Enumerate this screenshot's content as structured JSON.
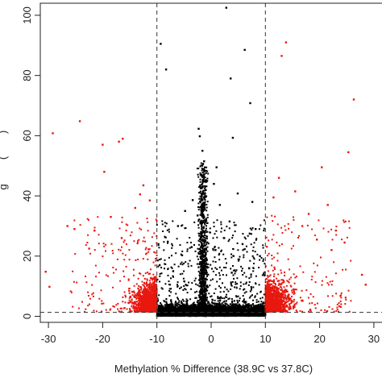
{
  "chart_data": {
    "type": "scatter",
    "title": "",
    "xlabel": "Methylation % Difference (38.9C vs 37.8C)",
    "ylabel_visible_fragments": [
      "g",
      "(",
      ")"
    ],
    "x_ticks": [
      -30,
      -20,
      -10,
      0,
      10,
      20,
      30
    ],
    "y_ticks": [
      0,
      20,
      40,
      60,
      80,
      100
    ],
    "x_tick_labels": [
      "-30",
      "-20",
      "-10",
      "0",
      "10",
      "20",
      "30"
    ],
    "y_tick_labels": [
      "0",
      "20",
      "40",
      "60",
      "80",
      "100"
    ],
    "xlim": [
      -31.5,
      31.5
    ],
    "ylim": [
      -2,
      104
    ],
    "grid": false,
    "legend": "none",
    "reference_lines": {
      "vertical_x": [
        -10,
        10
      ],
      "horizontal_y": [
        1.3
      ],
      "style": "dashed"
    },
    "colors": {
      "significant": "#e8180f",
      "not_significant": "#000000"
    },
    "series": [
      {
        "color": "#000000",
        "points": [
          [
            2.8,
            102.5
          ],
          [
            -9.3,
            90.5
          ],
          [
            -8.3,
            82
          ],
          [
            6.2,
            88.5
          ],
          [
            3.6,
            79
          ],
          [
            7.2,
            70.8
          ],
          [
            -2.3,
            62.3
          ],
          [
            -2.1,
            59.8
          ],
          [
            4.0,
            59.3
          ],
          [
            -1.6,
            55.0
          ],
          [
            -1.3,
            51.5
          ],
          [
            1.0,
            49.5
          ],
          [
            -1.8,
            47.0
          ],
          [
            0.5,
            44.0
          ],
          [
            -1.0,
            42.0
          ],
          [
            4.9,
            40.8
          ],
          [
            -3.4,
            38.6
          ],
          [
            7.6,
            38.0
          ],
          [
            1.6,
            37.0
          ],
          [
            -4.8,
            35.0
          ],
          [
            -2.5,
            33.5
          ],
          [
            3.4,
            31.5
          ],
          [
            -6.1,
            30.0
          ],
          [
            8.2,
            29.0
          ],
          [
            -1.2,
            28.2
          ],
          [
            2.4,
            26.0
          ],
          [
            -8.0,
            24.8
          ],
          [
            5.8,
            24.0
          ],
          [
            -3.6,
            23.0
          ],
          [
            0.8,
            22.0
          ],
          [
            -5.5,
            20.5
          ],
          [
            9.0,
            20.0
          ],
          [
            -9.5,
            17.0
          ],
          [
            7.0,
            16.0
          ],
          [
            -7.0,
            15.0
          ],
          [
            3.8,
            14.5
          ]
        ]
      },
      {
        "color": "#e8180f",
        "points": [
          [
            -29.2,
            60.8
          ],
          [
            -24.2,
            64.8
          ],
          [
            -20.0,
            57.0
          ],
          [
            -17.0,
            58.0
          ],
          [
            -16.3,
            59.0
          ],
          [
            -19.7,
            48.0
          ],
          [
            -12.5,
            43.5
          ],
          [
            -13.1,
            40.5
          ],
          [
            -14.0,
            36.0
          ],
          [
            -18.5,
            33.0
          ],
          [
            -26.5,
            30.0
          ],
          [
            -25.2,
            29.0
          ],
          [
            -30.5,
            14.8
          ],
          [
            -29.8,
            9.8
          ],
          [
            -22.5,
            22.5
          ],
          [
            -21.5,
            28.5
          ],
          [
            -16.5,
            26.0
          ],
          [
            -11.3,
            38.5
          ],
          [
            13.0,
            86.5
          ],
          [
            13.8,
            91.0
          ],
          [
            26.3,
            72.0
          ],
          [
            25.3,
            54.5
          ],
          [
            20.4,
            49.5
          ],
          [
            12.5,
            46.0
          ],
          [
            15.5,
            41.5
          ],
          [
            21.5,
            37.0
          ],
          [
            18.0,
            34.0
          ],
          [
            23.0,
            28.5
          ],
          [
            24.6,
            24.5
          ],
          [
            27.8,
            13.8
          ],
          [
            28.5,
            10.5
          ],
          [
            11.5,
            39.5
          ],
          [
            16.8,
            30.0
          ],
          [
            19.5,
            25.5
          ],
          [
            22.2,
            22.0
          ]
        ]
      }
    ]
  }
}
